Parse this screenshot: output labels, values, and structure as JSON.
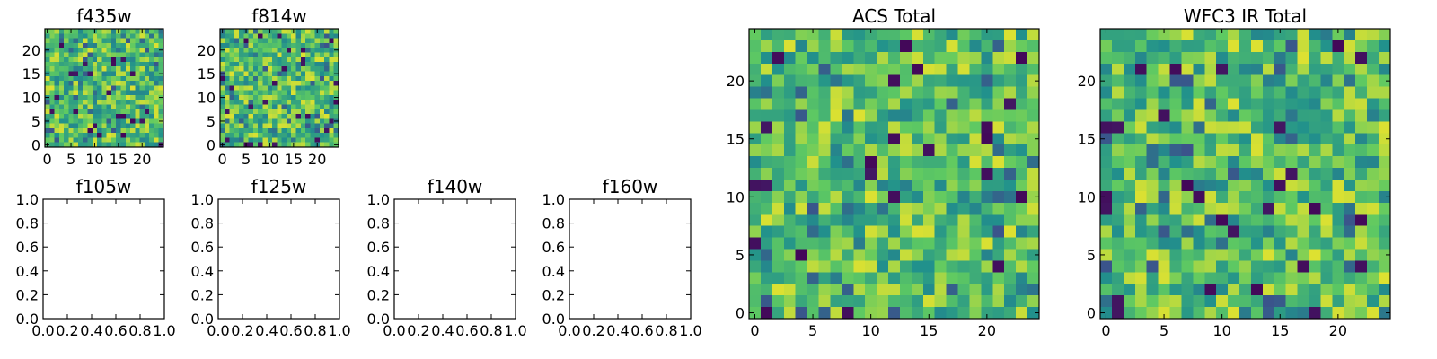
{
  "chart_data": [
    {
      "id": "f435w",
      "type": "heatmap",
      "title": "f435w",
      "empty": false,
      "grid_size": 25,
      "seed": 11,
      "xticks": [
        "0",
        "5",
        "10",
        "15",
        "20"
      ],
      "yticks": [
        "0",
        "5",
        "10",
        "15",
        "20"
      ],
      "xlim": [
        -0.5,
        24.5
      ],
      "ylim": [
        -0.5,
        24.5
      ]
    },
    {
      "id": "f814w",
      "type": "heatmap",
      "title": "f814w",
      "empty": false,
      "grid_size": 25,
      "seed": 23,
      "xticks": [
        "0",
        "5",
        "10",
        "15",
        "20"
      ],
      "yticks": [
        "0",
        "5",
        "10",
        "15",
        "20"
      ],
      "xlim": [
        -0.5,
        24.5
      ],
      "ylim": [
        -0.5,
        24.5
      ]
    },
    {
      "id": "f105w",
      "type": "heatmap",
      "title": "f105w",
      "empty": true,
      "xticks": [
        "0.0",
        "0.2",
        "0.4",
        "0.6",
        "0.8",
        "1.0"
      ],
      "yticks": [
        "0.0",
        "0.2",
        "0.4",
        "0.6",
        "0.8",
        "1.0"
      ],
      "xlim": [
        0,
        1
      ],
      "ylim": [
        0,
        1
      ]
    },
    {
      "id": "f125w",
      "type": "heatmap",
      "title": "f125w",
      "empty": true,
      "xticks": [
        "0.0",
        "0.2",
        "0.4",
        "0.6",
        "0.8",
        "1.0"
      ],
      "yticks": [
        "0.0",
        "0.2",
        "0.4",
        "0.6",
        "0.8",
        "1.0"
      ],
      "xlim": [
        0,
        1
      ],
      "ylim": [
        0,
        1
      ]
    },
    {
      "id": "f140w",
      "type": "heatmap",
      "title": "f140w",
      "empty": true,
      "xticks": [
        "0.0",
        "0.2",
        "0.4",
        "0.6",
        "0.8",
        "1.0"
      ],
      "yticks": [
        "0.0",
        "0.2",
        "0.4",
        "0.6",
        "0.8",
        "1.0"
      ],
      "xlim": [
        0,
        1
      ],
      "ylim": [
        0,
        1
      ]
    },
    {
      "id": "f160w",
      "type": "heatmap",
      "title": "f160w",
      "empty": true,
      "xticks": [
        "0.0",
        "0.2",
        "0.4",
        "0.6",
        "0.8",
        "1.0"
      ],
      "yticks": [
        "0.0",
        "0.2",
        "0.4",
        "0.6",
        "0.8",
        "1.0"
      ],
      "xlim": [
        0,
        1
      ],
      "ylim": [
        0,
        1
      ]
    },
    {
      "id": "acs-total",
      "type": "heatmap",
      "title": "ACS Total",
      "empty": false,
      "grid_size": 25,
      "seed": 37,
      "xticks": [
        "0",
        "5",
        "10",
        "15",
        "20"
      ],
      "yticks": [
        "0",
        "5",
        "10",
        "15",
        "20"
      ],
      "xlim": [
        -0.5,
        24.5
      ],
      "ylim": [
        -0.5,
        24.5
      ]
    },
    {
      "id": "wfc3-ir-total",
      "type": "heatmap",
      "title": "WFC3 IR Total",
      "empty": false,
      "grid_size": 25,
      "seed": 53,
      "xticks": [
        "0",
        "5",
        "10",
        "15",
        "20"
      ],
      "yticks": [
        "0",
        "5",
        "10",
        "15",
        "20"
      ],
      "xlim": [
        -0.5,
        24.5
      ],
      "ylim": [
        -0.5,
        24.5
      ]
    }
  ],
  "colors": {
    "colormap": "viridis",
    "low": "#440154",
    "mid_low": "#31688e",
    "mid": "#21918c",
    "mid_high": "#5ec962",
    "high": "#fde725"
  }
}
